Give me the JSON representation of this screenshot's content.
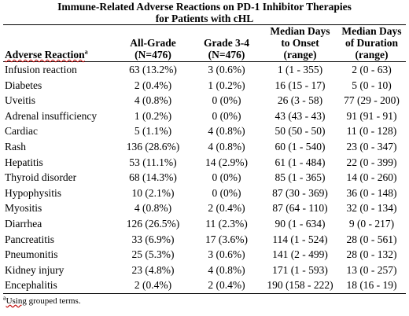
{
  "title": {
    "line1": "Immune-Related Adverse Reactions on PD-1 Inhibitor Therapies",
    "line2": "for Patients with cHL"
  },
  "table": {
    "headers": {
      "reaction": "Adverse Reaction",
      "reaction_sup": "a",
      "all_grade_line1": "All-Grade",
      "all_grade_line2": "(N=476)",
      "grade34_line1": "Grade 3-4",
      "grade34_line2": "(N=476)",
      "onset_line1": "Median Days",
      "onset_line2": "to Onset",
      "onset_line3": "(range)",
      "duration_line1": "Median Days",
      "duration_line2": "of Duration",
      "duration_line3": "(range)"
    },
    "rows": [
      {
        "reaction": "Infusion reaction",
        "all_grade": "63 (13.2%)",
        "grade34": "3 (0.6%)",
        "onset": "1 (1 - 355)",
        "duration": "2 (0 - 63)"
      },
      {
        "reaction": "Diabetes",
        "all_grade": "2 (0.4%)",
        "grade34": "1 (0.2%)",
        "onset": "16 (15 - 17)",
        "duration": "5 (0 - 10)"
      },
      {
        "reaction": "Uveitis",
        "all_grade": "4 (0.8%)",
        "grade34": "0 (0%)",
        "onset": "26 (3 - 58)",
        "duration": "77 (29 - 200)"
      },
      {
        "reaction": "Adrenal insufficiency",
        "all_grade": "1 (0.2%)",
        "grade34": "0 (0%)",
        "onset": "43 (43 - 43)",
        "duration": "91 (91 - 91)"
      },
      {
        "reaction": "Cardiac",
        "all_grade": "5 (1.1%)",
        "grade34": "4 (0.8%)",
        "onset": "50 (50 - 50)",
        "duration": "11 (0 - 128)"
      },
      {
        "reaction": "Rash",
        "all_grade": "136 (28.6%)",
        "grade34": "4 (0.8%)",
        "onset": "60 (1 - 540)",
        "duration": "23 (0 - 347)"
      },
      {
        "reaction": "Hepatitis",
        "all_grade": "53 (11.1%)",
        "grade34": "14 (2.9%)",
        "onset": "61 (1 - 484)",
        "duration": "22 (0 - 399)"
      },
      {
        "reaction": "Thyroid disorder",
        "all_grade": "68 (14.3%)",
        "grade34": "0 (0%)",
        "onset": "85 (1 - 365)",
        "duration": "14 (0 - 260)"
      },
      {
        "reaction": "Hypophysitis",
        "all_grade": "10 (2.1%)",
        "grade34": "0 (0%)",
        "onset": "87 (30 - 369)",
        "duration": "36 (0 - 148)"
      },
      {
        "reaction": "Myositis",
        "all_grade": "4 (0.8%)",
        "grade34": "2 (0.4%)",
        "onset": "87 (64 - 110)",
        "duration": "32 (0 - 134)"
      },
      {
        "reaction": "Diarrhea",
        "all_grade": "126 (26.5%)",
        "grade34": "11 (2.3%)",
        "onset": "90 (1 - 634)",
        "duration": "9 (0 - 217)"
      },
      {
        "reaction": "Pancreatitis",
        "all_grade": "33 (6.9%)",
        "grade34": "17 (3.6%)",
        "onset": "114 (1 - 524)",
        "duration": "28 (0 - 561)"
      },
      {
        "reaction": "Pneumonitis",
        "all_grade": "25 (5.3%)",
        "grade34": "3 (0.6%)",
        "onset": "141 (2 - 499)",
        "duration": "28 (0 - 132)"
      },
      {
        "reaction": "Kidney injury",
        "all_grade": "23 (4.8%)",
        "grade34": "4 (0.8%)",
        "onset": "171 (1 - 593)",
        "duration": "13 (0 - 257)"
      },
      {
        "reaction": "Encephalitis",
        "all_grade": "2 (0.4%)",
        "grade34": "2 (0.4%)",
        "onset": "190 (158 - 222)",
        "duration": "18 (16 - 19)"
      }
    ]
  },
  "footnote": {
    "marker": "a",
    "word1": "Using",
    "rest": " grouped terms."
  }
}
